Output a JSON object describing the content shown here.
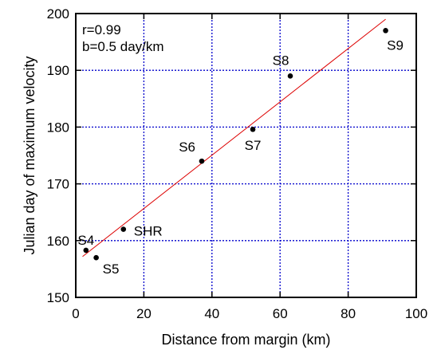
{
  "chart_data": {
    "type": "scatter",
    "title": "",
    "xlabel": "Distance from margin (km)",
    "ylabel": "Julian day of maximum velocity",
    "xlim": [
      0,
      100
    ],
    "ylim": [
      150,
      200
    ],
    "xticks": [
      0,
      20,
      40,
      60,
      80,
      100
    ],
    "yticks": [
      150,
      160,
      170,
      180,
      190,
      200
    ],
    "grid": true,
    "grid_color": "#0000cc",
    "marker_color": "#000000",
    "fit_color": "#dd0000",
    "points": [
      {
        "label": "S4",
        "x": 3,
        "y": 158.3
      },
      {
        "label": "S5",
        "x": 6,
        "y": 157
      },
      {
        "label": "SHR",
        "x": 14,
        "y": 162
      },
      {
        "label": "S6",
        "x": 37,
        "y": 174
      },
      {
        "label": "S7",
        "x": 52,
        "y": 179.6
      },
      {
        "label": "S8",
        "x": 63,
        "y": 189
      },
      {
        "label": "S9",
        "x": 91,
        "y": 197
      }
    ],
    "fit_line": {
      "x": [
        2,
        91
      ],
      "y": [
        157.2,
        199
      ]
    },
    "annotations": [
      "r=0.99",
      "b=0.5 day/km"
    ]
  }
}
